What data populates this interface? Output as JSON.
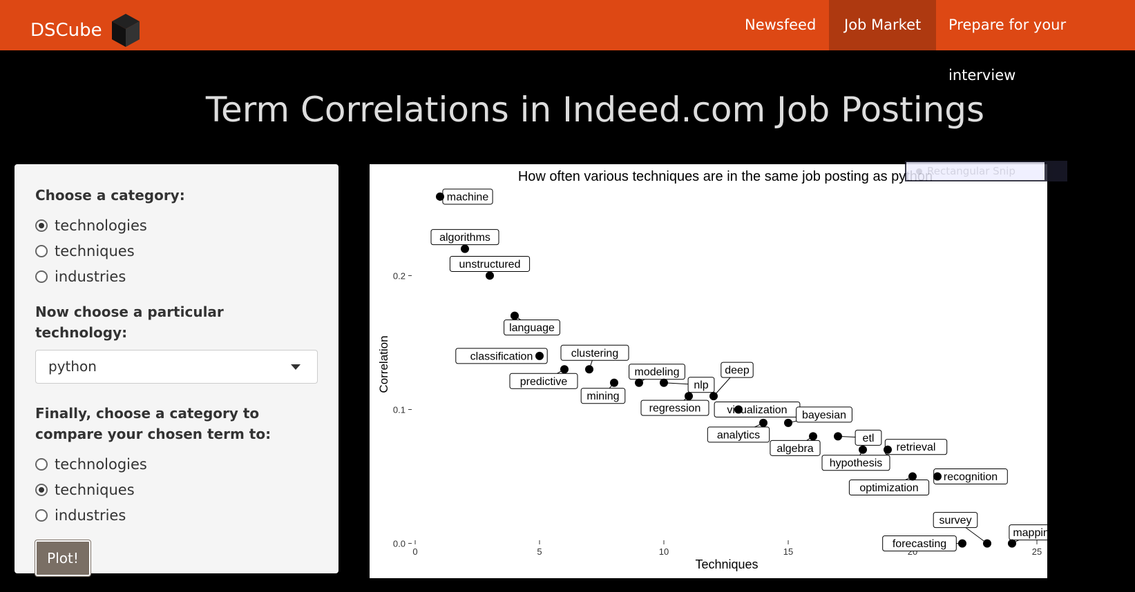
{
  "brand": {
    "name": "DSCube"
  },
  "nav": {
    "items": [
      {
        "label": "Newsfeed",
        "active": false
      },
      {
        "label": "Job Market",
        "active": true
      },
      {
        "label": "Prepare for your interview",
        "active": false
      }
    ]
  },
  "page": {
    "title": "Term Correlations in Indeed.com Job Postings"
  },
  "sidebar": {
    "category_label": "Choose a category:",
    "category_options": [
      {
        "label": "technologies",
        "checked": true
      },
      {
        "label": "techniques",
        "checked": false
      },
      {
        "label": "industries",
        "checked": false
      }
    ],
    "tech_label": "Now choose a particular technology:",
    "tech_selected": "python",
    "compare_label": "Finally, choose a category to compare your chosen term to:",
    "compare_options": [
      {
        "label": "technologies",
        "checked": false
      },
      {
        "label": "techniques",
        "checked": true
      },
      {
        "label": "industries",
        "checked": false
      }
    ],
    "plot_button": "Plot!"
  },
  "overlay": {
    "snip_text": "Rectangular Snip"
  },
  "colors": {
    "navbar": "#dd4814",
    "nav_active": "#ae3910",
    "button": "#7a6f65"
  },
  "chart_data": {
    "type": "scatter",
    "title": "How often various techniques are in the same job posting as python",
    "xlabel": "Techniques",
    "ylabel": "Correlation",
    "xlim": [
      0,
      25
    ],
    "ylim": [
      -0.01,
      0.26
    ],
    "xticks": [
      0,
      5,
      10,
      15,
      20,
      25
    ],
    "yticks": [
      0.0,
      0.1,
      0.2
    ],
    "ytick_labels": [
      "0.0",
      "0.1",
      "0.2"
    ],
    "grid": false,
    "points": [
      {
        "label": "machine",
        "x": 1,
        "y": 0.259
      },
      {
        "label": "algorithms",
        "x": 2,
        "y": 0.22
      },
      {
        "label": "unstructured",
        "x": 3,
        "y": 0.2
      },
      {
        "label": "language",
        "x": 4,
        "y": 0.17
      },
      {
        "label": "classification",
        "x": 5,
        "y": 0.14
      },
      {
        "label": "predictive",
        "x": 6,
        "y": 0.13
      },
      {
        "label": "clustering",
        "x": 7,
        "y": 0.13
      },
      {
        "label": "mining",
        "x": 8,
        "y": 0.12
      },
      {
        "label": "modeling",
        "x": 9,
        "y": 0.12
      },
      {
        "label": "nlp",
        "x": 10,
        "y": 0.12
      },
      {
        "label": "regression",
        "x": 11,
        "y": 0.11
      },
      {
        "label": "deep",
        "x": 12,
        "y": 0.11
      },
      {
        "label": "visualization",
        "x": 13,
        "y": 0.1
      },
      {
        "label": "analytics",
        "x": 14,
        "y": 0.09
      },
      {
        "label": "bayesian",
        "x": 15,
        "y": 0.09
      },
      {
        "label": "algebra",
        "x": 16,
        "y": 0.08
      },
      {
        "label": "etl",
        "x": 17,
        "y": 0.08
      },
      {
        "label": "hypothesis",
        "x": 18,
        "y": 0.07
      },
      {
        "label": "retrieval",
        "x": 19,
        "y": 0.07
      },
      {
        "label": "optimization",
        "x": 20,
        "y": 0.05
      },
      {
        "label": "recognition",
        "x": 21,
        "y": 0.05
      },
      {
        "label": "forecasting",
        "x": 22,
        "y": 0.0
      },
      {
        "label": "survey",
        "x": 23,
        "y": 0.0
      },
      {
        "label": "mapping",
        "x": 24,
        "y": 0.0
      }
    ]
  }
}
